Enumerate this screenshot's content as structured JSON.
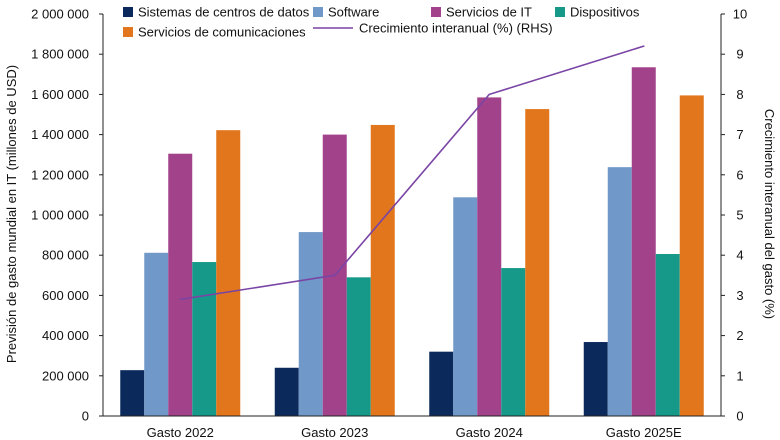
{
  "chart_data": {
    "type": "bar",
    "categories": [
      "Gasto 2022",
      "Gasto 2023",
      "Gasto 2024",
      "Gasto 2025E"
    ],
    "series": [
      {
        "name": "Sistemas de centros de datos",
        "color": "#0b2a5b",
        "values": [
          228000,
          240000,
          320000,
          368000
        ]
      },
      {
        "name": "Software",
        "color": "#7098c8",
        "values": [
          812000,
          915000,
          1088000,
          1238000
        ]
      },
      {
        "name": "Servicios de IT",
        "color": "#a2428a",
        "values": [
          1305000,
          1400000,
          1585000,
          1735000
        ]
      },
      {
        "name": "Dispositivos",
        "color": "#17998a",
        "values": [
          766000,
          690000,
          736000,
          806000
        ]
      },
      {
        "name": "Servicios de comunicaciones",
        "color": "#e2761c",
        "values": [
          1422000,
          1448000,
          1527000,
          1595000
        ]
      }
    ],
    "line": {
      "name": "Crecimiento interanual (%) (RHS)",
      "color": "#7a44a4",
      "values": [
        2.9,
        3.5,
        8.0,
        9.2
      ]
    },
    "ylabel": "Previsión de gasto mundial en IT (millones de USD)",
    "y2label": "Crecimiento interanual del gasto (%)",
    "ylim": [
      0,
      2000000
    ],
    "y2lim": [
      0,
      10
    ],
    "yticks": [
      "0",
      "200 000",
      "400 000",
      "600 000",
      "800 000",
      "1 000 000",
      "1 200 000",
      "1 400 000",
      "1 600 000",
      "1 800 000",
      "2 000 000"
    ],
    "y2ticks": [
      "0",
      "1",
      "2",
      "3",
      "4",
      "5",
      "6",
      "7",
      "8",
      "9",
      "10"
    ],
    "grid": false,
    "legend_position": "top"
  }
}
